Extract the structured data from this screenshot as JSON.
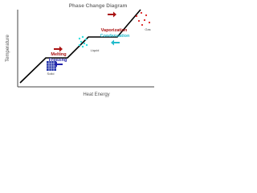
{
  "title": "Phase Change Diagram",
  "axes": {
    "y_label": "Temperature",
    "x_label": "Heat Energy"
  },
  "processes": {
    "melting": "Melting",
    "freezing": "Freezing",
    "vaporization": "Vaporization",
    "condensation": "Condensation"
  },
  "states": {
    "solid": "Solid",
    "liquid": "Liquid",
    "gas": "Gas"
  }
}
